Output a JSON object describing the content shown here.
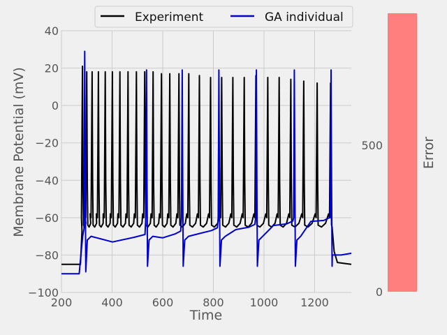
{
  "chart_data": [
    {
      "type": "line",
      "xlabel": "Time",
      "ylabel": "Membrane Potential (mV)",
      "xlim": [
        200,
        1345
      ],
      "ylim": [
        -100,
        40
      ],
      "xticks": [
        200,
        400,
        600,
        800,
        1000,
        1200
      ],
      "yticks": [
        -100,
        -80,
        -60,
        -40,
        -20,
        0,
        20,
        40
      ],
      "grid": true,
      "legend_position": "top-center",
      "series": [
        {
          "name": "Experiment",
          "color": "#000000",
          "resting": -85,
          "stim_onset": 275,
          "stim_offset": 1265,
          "spike_times": [
            283,
            300,
            321,
            346,
            373,
            401,
            431,
            463,
            496,
            529,
            562,
            595,
            628,
            664,
            703,
            745,
            789,
            833,
            877,
            922,
            968,
            1015,
            1060,
            1106,
            1157,
            1210,
            1263
          ],
          "spike_peaks": [
            21,
            18,
            18,
            18,
            18,
            18,
            18,
            18,
            18,
            18,
            18,
            17,
            17,
            17,
            17,
            16,
            15,
            15,
            15,
            15,
            16,
            15,
            15,
            14,
            13,
            12,
            12
          ],
          "trough_min": -65,
          "post_stim": -85
        },
        {
          "name": "GA individual",
          "color": "#0000cc",
          "resting": -90,
          "stim_onset": 270,
          "spike_times": [
            292,
            536,
            677,
            822,
            970,
            1120,
            1265
          ],
          "spike_peaks": [
            29,
            19,
            19,
            19,
            19,
            19,
            19
          ],
          "ahp_troughs": [
            -89,
            -86,
            -86,
            -86,
            -86,
            -86,
            -86
          ],
          "plateau_start": -70,
          "plateau_end": -61,
          "post_stim": -79
        }
      ]
    },
    {
      "type": "bar",
      "ylabel": "Error",
      "categories": [
        ""
      ],
      "values": [
        950
      ],
      "ylim": [
        0,
        950
      ],
      "yticks": [
        0,
        500
      ],
      "color": "#ff7f7f"
    }
  ]
}
